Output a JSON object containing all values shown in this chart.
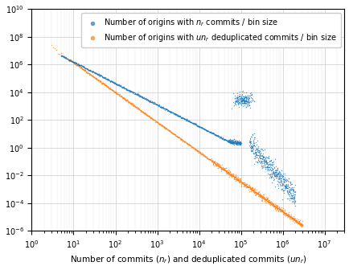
{
  "xlabel": "Number of commits ($n_r$) and deduplicated commits ($un_r$)",
  "xlim": [
    1,
    30000000.0
  ],
  "ylim": [
    1e-06,
    10000000000.0
  ],
  "blue_label": "Number of origins with $n_r$ commits / bin size",
  "orange_label": "Number of origins with $un_r$ deduplicated commits / bin size",
  "blue_color": "#1f77b4",
  "orange_color": "#ff7f0e",
  "seed": 12345,
  "blue_main_slope": -1.55,
  "blue_main_intercept_log": 7.75,
  "blue_main_x_start": 5,
  "blue_main_x_end": 50000,
  "blue_main_n": 700,
  "blue_main_scatter": 0.03,
  "blue_plateau_x_start": 50000,
  "blue_plateau_x_end": 100000,
  "blue_plateau_n": 150,
  "blue_plateau_y_log": 3.8,
  "blue_plateau_scatter": 0.08,
  "blue_bump_x_start": 80000,
  "blue_bump_x_end": 160000,
  "blue_bump_n": 200,
  "blue_bump_y_log": 3.5,
  "blue_bump_scatter": 0.25,
  "blue_post_x_start": 160000,
  "blue_post_x_end": 2000000,
  "blue_post_n": 500,
  "blue_post_slope": -3.5,
  "blue_post_intercept_log": 18.5,
  "blue_post_scatter": 0.35,
  "orange_early_x_start": 3,
  "orange_early_x_end": 8,
  "orange_early_n": 12,
  "orange_early_y_log_start": 7.3,
  "orange_early_y_log_end": 6.3,
  "orange_main_x_start": 8,
  "orange_main_x_end": 3000000,
  "orange_main_n": 900,
  "orange_main_slope": -2.15,
  "orange_main_intercept_log": 8.3,
  "orange_main_scatter": 0.03,
  "orange_dense_x_start": 20000,
  "orange_dense_x_end": 3000000,
  "orange_dense_n": 400,
  "orange_dense_scatter": 0.12
}
